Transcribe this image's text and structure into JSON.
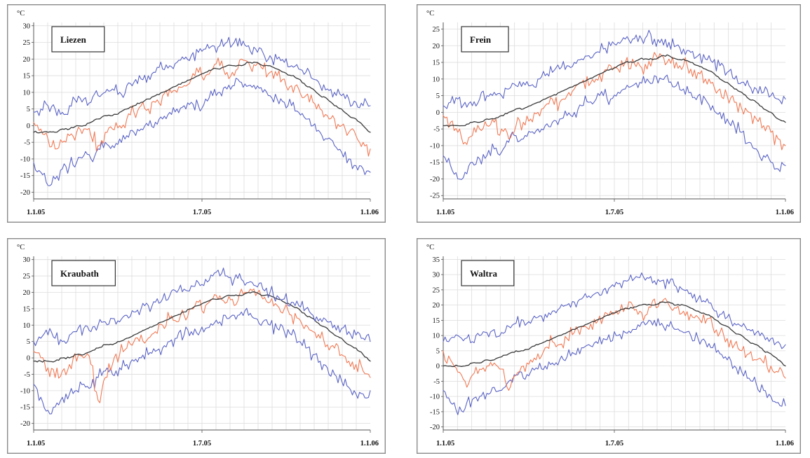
{
  "chart_data": [
    {
      "type": "line",
      "title": "Liezen",
      "unit": "°C",
      "y_ticks": [
        30,
        25,
        20,
        15,
        10,
        5,
        0,
        -5,
        -10,
        -15,
        -20
      ],
      "ylim": [
        -22,
        31
      ],
      "x_tick_labels": [
        "1.1.05",
        "1.7.05",
        "1.1.06"
      ],
      "grid": true,
      "series": [
        {
          "color": "#5b64c4",
          "values": [
            -11,
            -14,
            -18,
            -16,
            -13,
            -12,
            -11,
            -9,
            -10,
            -7,
            -5,
            -6,
            -4,
            -3,
            -2,
            -1,
            0,
            1,
            2,
            4,
            5,
            6,
            7,
            6,
            8,
            9,
            10,
            11,
            12,
            13,
            12,
            11,
            10,
            9,
            8,
            7,
            6,
            4,
            2,
            0,
            -2,
            -4,
            -6,
            -8,
            -10,
            -12,
            -13,
            -14
          ]
        },
        {
          "color": "#f07a55",
          "values": [
            1,
            -1,
            -4,
            -7,
            -5,
            -3,
            -2,
            -1,
            -3,
            -6,
            -2,
            -1,
            0,
            2,
            4,
            6,
            5,
            7,
            9,
            11,
            10,
            12,
            14,
            16,
            15,
            17,
            18,
            16,
            15,
            20,
            19,
            18,
            17,
            16,
            15,
            14,
            12,
            11,
            9,
            7,
            5,
            3,
            2,
            0,
            -2,
            -3,
            -5,
            -7
          ]
        },
        {
          "color": "#3a3a3a",
          "values": [
            -2,
            -2,
            -2,
            -2,
            -1,
            -1,
            0,
            0,
            1,
            2,
            3,
            3,
            4,
            5,
            6,
            7,
            8,
            9,
            10,
            11,
            12,
            13,
            14,
            15,
            16,
            17,
            17,
            18,
            18,
            18,
            19,
            19,
            18,
            18,
            17,
            16,
            15,
            14,
            12,
            11,
            9,
            8,
            6,
            5,
            3,
            2,
            0,
            -2
          ]
        },
        {
          "color": "#5b64c4",
          "values": [
            4,
            5,
            6,
            5,
            4,
            6,
            7,
            8,
            7,
            9,
            10,
            11,
            10,
            12,
            13,
            14,
            15,
            16,
            17,
            18,
            19,
            20,
            21,
            22,
            23,
            24,
            24,
            25,
            25,
            24,
            24,
            23,
            22,
            21,
            20,
            19,
            18,
            17,
            16,
            14,
            12,
            11,
            10,
            9,
            8,
            7,
            6,
            6
          ]
        }
      ]
    },
    {
      "type": "line",
      "title": "Frein",
      "unit": "°C",
      "y_ticks": [
        25,
        20,
        15,
        10,
        5,
        0,
        -5,
        -10,
        -15,
        -20,
        -25
      ],
      "ylim": [
        -26,
        27
      ],
      "x_tick_labels": [
        "1.1.05",
        "1.7.05",
        "1.1.06"
      ],
      "grid": true,
      "series": [
        {
          "color": "#5b64c4",
          "values": [
            -13,
            -16,
            -20,
            -18,
            -15,
            -14,
            -13,
            -11,
            -12,
            -9,
            -7,
            -8,
            -6,
            -5,
            -4,
            -3,
            -2,
            -1,
            0,
            2,
            3,
            4,
            5,
            4,
            6,
            7,
            8,
            9,
            10,
            11,
            10,
            9,
            8,
            7,
            6,
            5,
            4,
            2,
            0,
            -2,
            -4,
            -6,
            -9,
            -11,
            -13,
            -15,
            -17,
            -16
          ]
        },
        {
          "color": "#f07a55",
          "values": [
            -1,
            -3,
            -6,
            -9,
            -7,
            -5,
            -4,
            -3,
            -5,
            -8,
            -4,
            -3,
            -2,
            0,
            2,
            4,
            3,
            5,
            7,
            9,
            8,
            10,
            12,
            14,
            13,
            15,
            16,
            14,
            13,
            18,
            17,
            16,
            15,
            14,
            13,
            12,
            10,
            9,
            7,
            5,
            3,
            1,
            0,
            -2,
            -4,
            -6,
            -8,
            -10
          ]
        },
        {
          "color": "#3a3a3a",
          "values": [
            -4,
            -4,
            -4,
            -4,
            -3,
            -3,
            -2,
            -2,
            -1,
            0,
            1,
            1,
            2,
            3,
            4,
            5,
            6,
            7,
            8,
            9,
            10,
            11,
            12,
            13,
            14,
            15,
            15,
            16,
            16,
            16,
            17,
            17,
            16,
            16,
            15,
            14,
            13,
            12,
            10,
            9,
            7,
            6,
            4,
            3,
            1,
            0,
            -2,
            -3
          ]
        },
        {
          "color": "#5b64c4",
          "values": [
            2,
            3,
            4,
            3,
            2,
            4,
            5,
            6,
            5,
            7,
            8,
            9,
            8,
            10,
            11,
            12,
            13,
            14,
            15,
            16,
            17,
            18,
            19,
            20,
            21,
            22,
            22,
            23,
            23,
            22,
            22,
            21,
            20,
            19,
            18,
            17,
            16,
            15,
            14,
            12,
            10,
            9,
            8,
            7,
            6,
            5,
            4,
            4
          ]
        }
      ]
    },
    {
      "type": "line",
      "title": "Kraubath",
      "unit": "°C",
      "y_ticks": [
        30,
        25,
        20,
        15,
        10,
        5,
        0,
        -5,
        -10,
        -15,
        -20
      ],
      "ylim": [
        -22,
        31
      ],
      "x_tick_labels": [
        "1.1.05",
        "1.7.05",
        "1.1.06"
      ],
      "grid": true,
      "series": [
        {
          "color": "#5b64c4",
          "values": [
            -8,
            -12,
            -16,
            -15,
            -12,
            -11,
            -10,
            -8,
            -9,
            -6,
            -4,
            -5,
            -3,
            -2,
            -1,
            0,
            1,
            2,
            3,
            5,
            6,
            7,
            8,
            7,
            9,
            10,
            11,
            12,
            13,
            14,
            13,
            12,
            11,
            10,
            9,
            8,
            7,
            5,
            3,
            1,
            -1,
            -3,
            -5,
            -7,
            -9,
            -11,
            -11,
            -10
          ]
        },
        {
          "color": "#f07a55",
          "values": [
            2,
            0,
            -3,
            -6,
            -4,
            -2,
            -1,
            0,
            -2,
            -13,
            -6,
            -2,
            1,
            3,
            5,
            7,
            6,
            8,
            10,
            12,
            11,
            13,
            15,
            17,
            16,
            18,
            19,
            17,
            16,
            21,
            20,
            19,
            18,
            17,
            16,
            15,
            13,
            12,
            10,
            8,
            6,
            4,
            3,
            1,
            -1,
            -2,
            -4,
            -6
          ]
        },
        {
          "color": "#3a3a3a",
          "values": [
            -1,
            -1,
            -1,
            -1,
            0,
            0,
            1,
            1,
            2,
            3,
            4,
            4,
            5,
            6,
            7,
            8,
            9,
            10,
            11,
            12,
            13,
            14,
            15,
            16,
            17,
            18,
            18,
            19,
            19,
            19,
            20,
            20,
            19,
            19,
            18,
            17,
            16,
            15,
            13,
            12,
            10,
            9,
            7,
            6,
            4,
            3,
            1,
            -1
          ]
        },
        {
          "color": "#5b64c4",
          "values": [
            5,
            6,
            7,
            6,
            5,
            7,
            8,
            9,
            8,
            10,
            11,
            12,
            11,
            13,
            14,
            15,
            16,
            17,
            18,
            19,
            20,
            21,
            22,
            23,
            24,
            25,
            25,
            25,
            24,
            24,
            23,
            22,
            21,
            20,
            19,
            18,
            17,
            16,
            15,
            13,
            12,
            11,
            10,
            9,
            8,
            7,
            6,
            5
          ]
        }
      ]
    },
    {
      "type": "line",
      "title": "Waltra",
      "unit": "°C",
      "y_ticks": [
        35,
        30,
        25,
        20,
        15,
        10,
        5,
        0,
        -5,
        -10,
        -15,
        -20
      ],
      "ylim": [
        -21,
        36
      ],
      "x_tick_labels": [
        "1.1.05",
        "1.7.05",
        "1.1.06"
      ],
      "grid": true,
      "series": [
        {
          "color": "#5b64c4",
          "values": [
            -8,
            -12,
            -16,
            -14,
            -11,
            -10,
            -9,
            -7,
            -8,
            -5,
            -3,
            -4,
            -2,
            -1,
            0,
            1,
            2,
            3,
            4,
            6,
            7,
            8,
            9,
            8,
            10,
            11,
            12,
            13,
            14,
            15,
            14,
            13,
            12,
            11,
            10,
            9,
            8,
            6,
            4,
            2,
            0,
            -2,
            -4,
            -6,
            -8,
            -10,
            -12,
            -13
          ]
        },
        {
          "color": "#f07a55",
          "values": [
            5,
            2,
            -2,
            -5,
            -3,
            -1,
            0,
            1,
            -1,
            -8,
            -3,
            0,
            2,
            4,
            6,
            8,
            7,
            9,
            11,
            13,
            12,
            14,
            16,
            18,
            17,
            19,
            20,
            18,
            17,
            22,
            21,
            20,
            19,
            18,
            17,
            16,
            14,
            13,
            11,
            9,
            7,
            5,
            4,
            2,
            1,
            0,
            -2,
            -4
          ]
        },
        {
          "color": "#3a3a3a",
          "values": [
            0,
            0,
            0,
            0,
            1,
            1,
            2,
            2,
            3,
            4,
            5,
            5,
            6,
            7,
            8,
            9,
            10,
            11,
            12,
            13,
            14,
            15,
            16,
            17,
            18,
            19,
            19,
            20,
            20,
            20,
            21,
            21,
            20,
            20,
            19,
            18,
            17,
            16,
            14,
            13,
            11,
            10,
            8,
            7,
            5,
            4,
            2,
            0
          ]
        },
        {
          "color": "#5b64c4",
          "values": [
            8,
            9,
            10,
            9,
            8,
            10,
            11,
            12,
            11,
            13,
            14,
            15,
            14,
            16,
            17,
            18,
            19,
            20,
            21,
            22,
            23,
            24,
            25,
            26,
            27,
            28,
            28,
            29,
            29,
            28,
            28,
            27,
            26,
            25,
            24,
            22,
            21,
            19,
            17,
            16,
            14,
            13,
            12,
            11,
            10,
            9,
            8,
            7
          ]
        }
      ]
    }
  ]
}
